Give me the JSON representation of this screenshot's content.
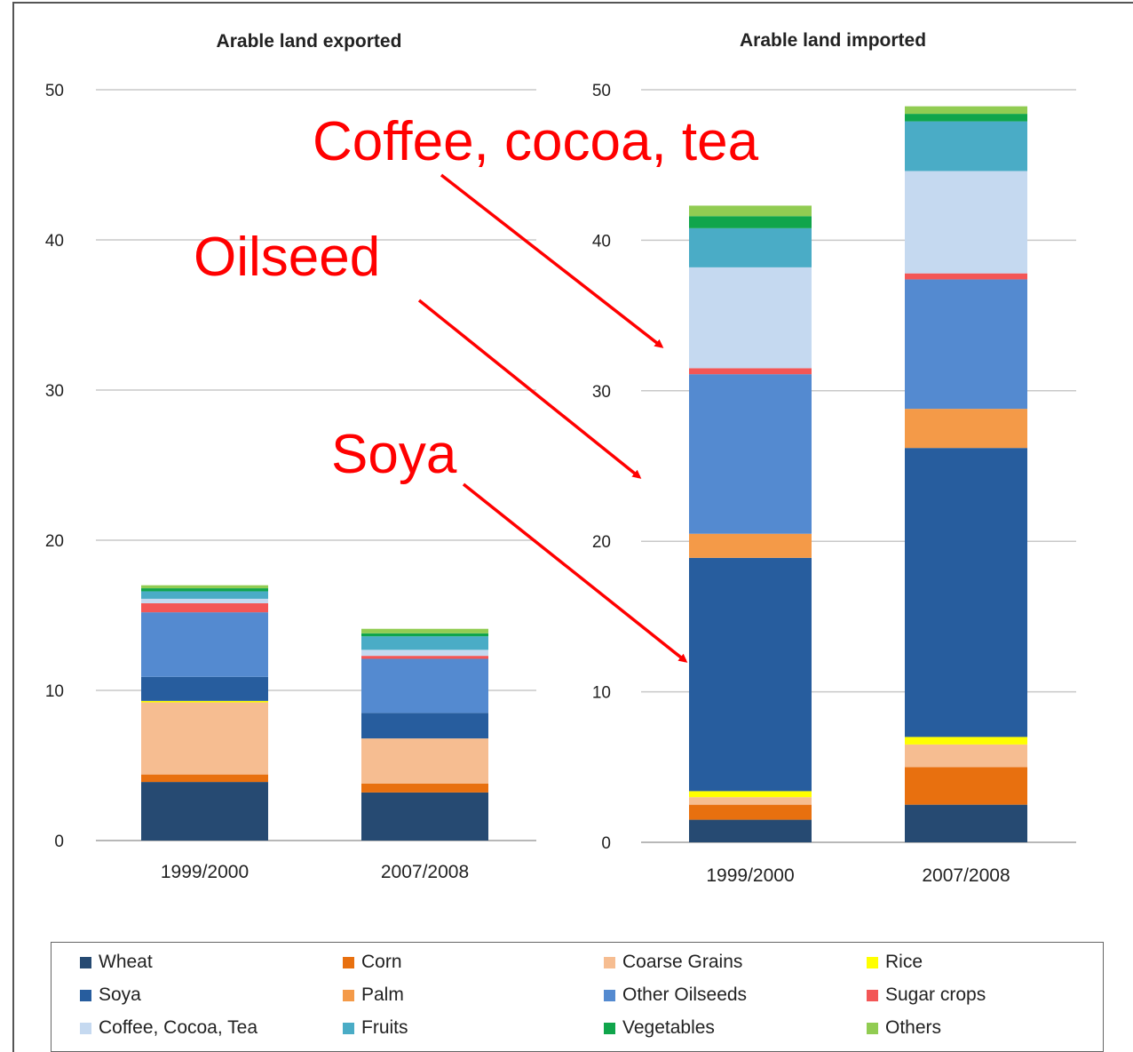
{
  "chart_data": [
    {
      "type": "bar",
      "stacked": true,
      "title": "Arable land exported",
      "xlabel": "",
      "ylabel": "",
      "ylim": [
        0,
        50
      ],
      "yticks": [
        "0",
        "10",
        "20",
        "30",
        "40",
        "50"
      ],
      "categories": [
        "1999/2000",
        "2007/2008"
      ],
      "grid": true,
      "series": [
        {
          "name": "Wheat",
          "values": [
            3.9,
            3.2
          ]
        },
        {
          "name": "Corn",
          "values": [
            0.5,
            0.6
          ]
        },
        {
          "name": "Coarse Grains",
          "values": [
            4.8,
            3.0
          ]
        },
        {
          "name": "Rice",
          "values": [
            0.1,
            0.0
          ]
        },
        {
          "name": "Soya",
          "values": [
            1.6,
            1.7
          ]
        },
        {
          "name": "Other Oilseeds",
          "values": [
            4.3,
            3.6
          ]
        },
        {
          "name": "Sugar crops",
          "values": [
            0.6,
            0.2
          ]
        },
        {
          "name": "Coffee, Cocoa, Tea",
          "values": [
            0.3,
            0.4
          ]
        },
        {
          "name": "Fruits",
          "values": [
            0.5,
            0.9
          ]
        },
        {
          "name": "Vegetables",
          "values": [
            0.2,
            0.2
          ]
        },
        {
          "name": "Others",
          "values": [
            0.2,
            0.3
          ]
        }
      ]
    },
    {
      "type": "bar",
      "stacked": true,
      "title": "Arable land imported",
      "xlabel": "",
      "ylabel": "",
      "ylim": [
        0,
        50
      ],
      "yticks": [
        "0",
        "10",
        "20",
        "30",
        "40",
        "50"
      ],
      "categories": [
        "1999/2000",
        "2007/2008"
      ],
      "grid": true,
      "series": [
        {
          "name": "Wheat",
          "values": [
            1.5,
            2.5
          ]
        },
        {
          "name": "Corn",
          "values": [
            1.0,
            2.5
          ]
        },
        {
          "name": "Coarse Grains",
          "values": [
            0.5,
            1.5
          ]
        },
        {
          "name": "Rice",
          "values": [
            0.4,
            0.5
          ]
        },
        {
          "name": "Soya",
          "values": [
            15.5,
            19.2
          ]
        },
        {
          "name": "Palm",
          "values": [
            1.6,
            2.6
          ]
        },
        {
          "name": "Other Oilseeds",
          "values": [
            10.6,
            8.6
          ]
        },
        {
          "name": "Sugar crops",
          "values": [
            0.4,
            0.4
          ]
        },
        {
          "name": "Coffee, Cocoa, Tea",
          "values": [
            6.7,
            6.8
          ]
        },
        {
          "name": "Fruits",
          "values": [
            2.6,
            3.3
          ]
        },
        {
          "name": "Vegetables",
          "values": [
            0.8,
            0.5
          ]
        },
        {
          "name": "Others",
          "values": [
            0.7,
            0.5
          ]
        }
      ]
    }
  ],
  "series_colors": {
    "Wheat": "#264a72",
    "Corn": "#e8700f",
    "Coarse Grains": "#f6bd91",
    "Rice": "#ffff00",
    "Soya": "#275d9e",
    "Palm": "#f49a48",
    "Other Oilseeds": "#548ad0",
    "Sugar crops": "#f35656",
    "Coffee, Cocoa, Tea": "#c5d9f0",
    "Fruits": "#4aacc6",
    "Vegetables": "#10a54b",
    "Others": "#91cc52"
  },
  "legend": {
    "placement": "bottom",
    "items": [
      "Wheat",
      "Corn",
      "Coarse Grains",
      "Rice",
      "Soya",
      "Palm",
      "Other Oilseeds",
      "Sugar crops",
      "Coffee, Cocoa, Tea",
      "Fruits",
      "Vegetables",
      "Others"
    ]
  },
  "annotations": [
    {
      "text": "Coffee, cocoa, tea",
      "color": "#ff0000",
      "points_to": "Coffee, Cocoa, Tea"
    },
    {
      "text": "Oilseed",
      "color": "#ff0000",
      "points_to": "Other Oilseeds"
    },
    {
      "text": "Soya",
      "color": "#ff0000",
      "points_to": "Soya"
    }
  ]
}
